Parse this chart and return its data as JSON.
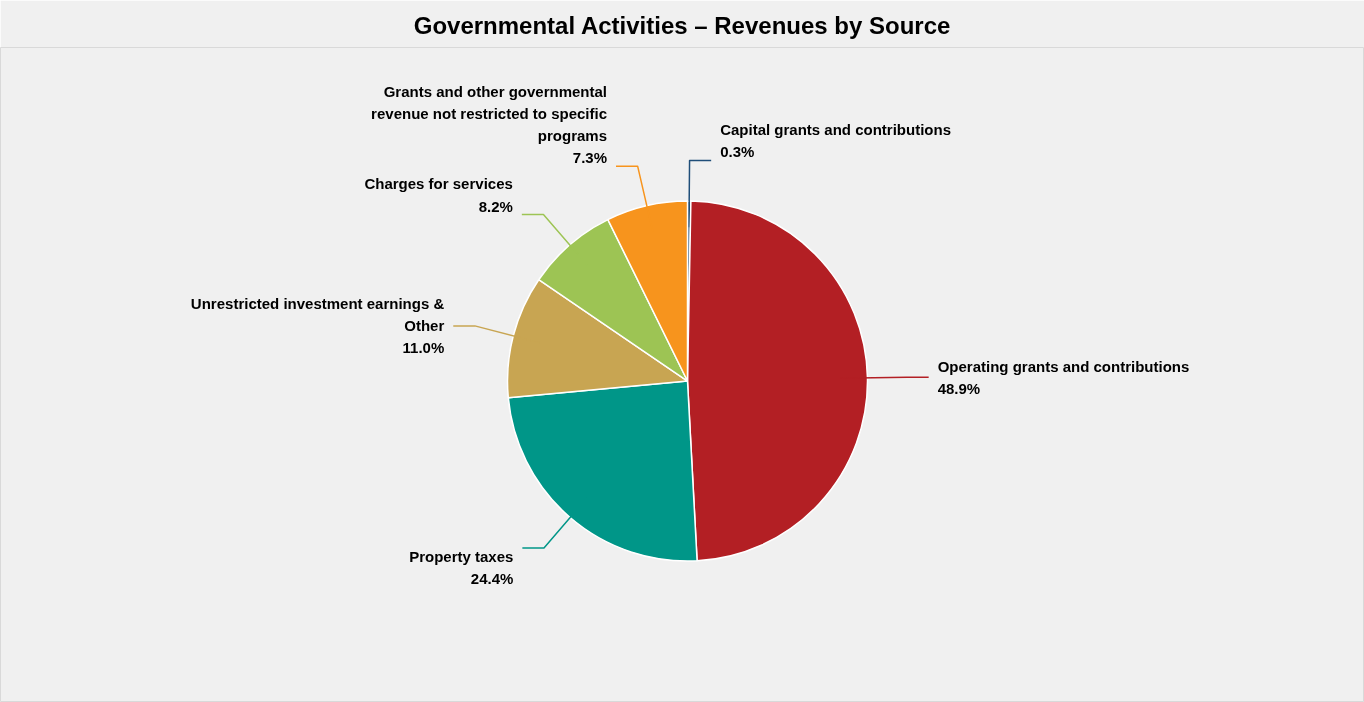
{
  "chart_data": {
    "type": "pie",
    "title": "Governmental Activities – Revenues by Source",
    "categories": [
      "Capital grants and contributions",
      "Operating grants and contributions",
      "Property taxes",
      "Unrestricted investment earnings & Other",
      "Charges for services",
      "Grants and other governmental revenue not restricted to specific programs"
    ],
    "values": [
      0.3,
      48.9,
      24.4,
      11.0,
      8.2,
      7.3
    ],
    "value_labels": [
      "0.3%",
      "48.9%",
      "24.4%",
      "11.0%",
      "8.2%",
      "7.3%"
    ],
    "colors": [
      "#1f4e79",
      "#b31f24",
      "#009688",
      "#c8a552",
      "#9dc454",
      "#f7941d"
    ]
  }
}
